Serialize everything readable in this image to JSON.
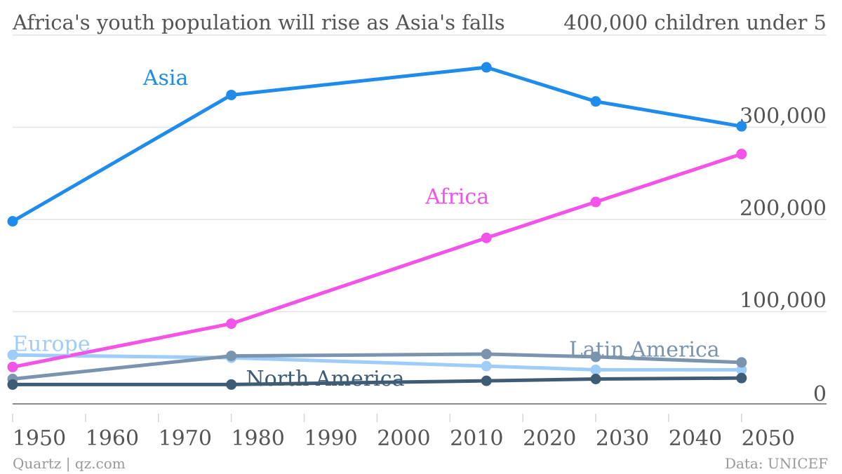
{
  "chart_data": {
    "type": "line",
    "title": "Africa's youth population will rise as Asia's falls",
    "ylabel": "400,000 children under 5",
    "xlim": [
      1950,
      2050
    ],
    "ylim": [
      0,
      400000
    ],
    "x_ticks": [
      "1950",
      "1960",
      "1970",
      "1980",
      "1990",
      "2000",
      "2010",
      "2020",
      "2030",
      "2040",
      "2050"
    ],
    "y_ticks": [
      {
        "value": 0,
        "label": "0"
      },
      {
        "value": 100000,
        "label": "100,000"
      },
      {
        "value": 200000,
        "label": "200,000"
      },
      {
        "value": 300000,
        "label": "300,000"
      }
    ],
    "grid": true,
    "x": [
      1950,
      1980,
      2015,
      2030,
      2050
    ],
    "series": [
      {
        "name": "Asia",
        "color": "#1f8ceb",
        "values": [
          198000,
          335000,
          365000,
          328000,
          301000
        ]
      },
      {
        "name": "Africa",
        "color": "#f553e8",
        "values": [
          40000,
          87000,
          180000,
          219000,
          271000
        ]
      },
      {
        "name": "Europe",
        "color": "#9fcdfa",
        "values": [
          53000,
          50000,
          41000,
          37000,
          37000
        ]
      },
      {
        "name": "Latin America",
        "color": "#7b94ae",
        "values": [
          27000,
          52000,
          54000,
          51000,
          45000
        ]
      },
      {
        "name": "North America",
        "color": "#3f5c75",
        "values": [
          21000,
          21000,
          25000,
          27000,
          28000
        ]
      }
    ]
  },
  "footer": {
    "source_left": "Quartz | qz.com",
    "source_right": "Data: UNICEF"
  }
}
